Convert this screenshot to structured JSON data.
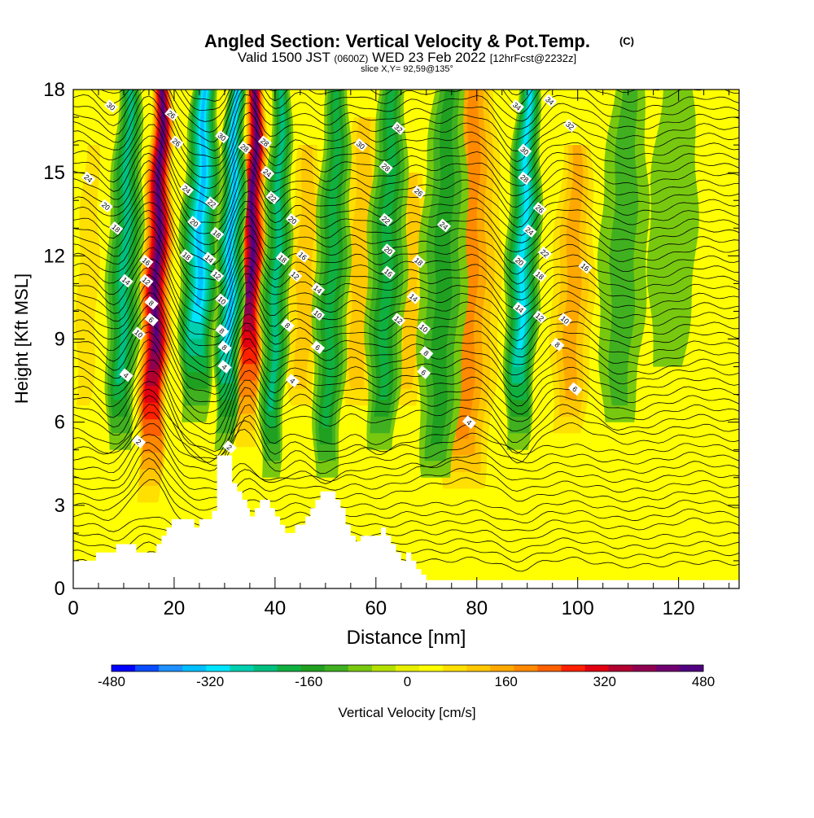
{
  "chart_data": {
    "type": "heatmap",
    "title": "Angled Section: Vertical Velocity & Pot.Temp.",
    "title_mark": "(C)",
    "subtitle": {
      "valid": "Valid 1500 JST",
      "zulu": "(0600Z)",
      "date": "WED 23 Feb 2022",
      "forecast": "[12hrFcst@2232z]"
    },
    "slice_label": "slice X,Y= 92,59@135°",
    "xlabel": "Distance [nm]",
    "ylabel": "Height [Kft MSL]",
    "xlim": [
      0,
      132
    ],
    "ylim": [
      0,
      18
    ],
    "x_ticks": [
      0,
      20,
      40,
      60,
      80,
      100,
      120
    ],
    "x_tick_labels": [
      "0",
      "20",
      "40",
      "60",
      "80",
      "100",
      "120"
    ],
    "y_ticks": [
      0,
      3,
      6,
      9,
      12,
      15,
      18
    ],
    "y_tick_labels": [
      "0",
      "3",
      "6",
      "9",
      "12",
      "15",
      "18"
    ],
    "colorbar": {
      "label": "Vertical Velocity [cm/s]",
      "min": -480,
      "max": 480,
      "step": 40,
      "tick_values": [
        -480,
        -320,
        -160,
        0,
        160,
        320,
        480
      ],
      "tick_labels": [
        "-480",
        "-320",
        "-160",
        "0",
        "160",
        "320",
        "480"
      ],
      "colors": [
        "#0000ff",
        "#0a4cff",
        "#1e90ff",
        "#00bfff",
        "#00e5ff",
        "#00d0b0",
        "#00c080",
        "#10b040",
        "#20a020",
        "#40b020",
        "#78c810",
        "#b4e000",
        "#e8f000",
        "#ffff00",
        "#ffe000",
        "#ffc800",
        "#ffa800",
        "#ff8a00",
        "#ff6000",
        "#ff2000",
        "#e00010",
        "#b00030",
        "#900050",
        "#700070",
        "#500080"
      ]
    },
    "vertical_velocity_bands": [
      {
        "x": 15,
        "w": 2.2,
        "v": 480,
        "top": 18,
        "bottom": 2.5
      },
      {
        "x": 34,
        "w": 2.0,
        "v": 480,
        "top": 18,
        "bottom": 4.5
      },
      {
        "x": 77,
        "w": 5.0,
        "v": 200,
        "top": 18,
        "bottom": 3
      },
      {
        "x": 98,
        "w": 3.5,
        "v": 170,
        "top": 16,
        "bottom": 5
      },
      {
        "x": 56,
        "w": 3.5,
        "v": 150,
        "top": 17,
        "bottom": 6
      },
      {
        "x": 45,
        "w": 3.0,
        "v": 130,
        "top": 16,
        "bottom": 6
      },
      {
        "x": 66,
        "w": 3.0,
        "v": 120,
        "top": 15,
        "bottom": 6
      },
      {
        "x": 123,
        "w": 3.0,
        "v": 70,
        "top": 14,
        "bottom": 2
      },
      {
        "x": 2,
        "w": 2.5,
        "v": 80,
        "top": 16,
        "bottom": 6
      },
      {
        "x": 24,
        "w": 2.5,
        "v": -320,
        "top": 18,
        "bottom": 6
      },
      {
        "x": 30,
        "w": 1.8,
        "v": -350,
        "top": 18,
        "bottom": 5
      },
      {
        "x": 88,
        "w": 2.2,
        "v": -300,
        "top": 18,
        "bottom": 5
      },
      {
        "x": 9,
        "w": 2.2,
        "v": -200,
        "top": 18,
        "bottom": 5
      },
      {
        "x": 39,
        "w": 1.8,
        "v": -200,
        "top": 18,
        "bottom": 4
      },
      {
        "x": 50,
        "w": 2.2,
        "v": -170,
        "top": 18,
        "bottom": 4
      },
      {
        "x": 61,
        "w": 2.5,
        "v": -180,
        "top": 18,
        "bottom": 5
      },
      {
        "x": 72,
        "w": 3.0,
        "v": -120,
        "top": 18,
        "bottom": 4
      },
      {
        "x": 108,
        "w": 3.0,
        "v": -90,
        "top": 18,
        "bottom": 6
      },
      {
        "x": 118,
        "w": 3.0,
        "v": -60,
        "top": 18,
        "bottom": 8
      }
    ],
    "terrain": [
      [
        0,
        1
      ],
      [
        4.5,
        1
      ],
      [
        4.5,
        1.3
      ],
      [
        8.5,
        1.3
      ],
      [
        8.5,
        1.6
      ],
      [
        12.5,
        1.6
      ],
      [
        12.5,
        1.3
      ],
      [
        16.5,
        1.3
      ],
      [
        16.5,
        1.6
      ],
      [
        17.5,
        1.6
      ],
      [
        17.5,
        1.9
      ],
      [
        18.5,
        1.9
      ],
      [
        18.5,
        2.2
      ],
      [
        19.5,
        2.2
      ],
      [
        19.5,
        2.5
      ],
      [
        24,
        2.5
      ],
      [
        24,
        2.2
      ],
      [
        25,
        2.2
      ],
      [
        25,
        2.5
      ],
      [
        27.5,
        2.5
      ],
      [
        27.5,
        2.8
      ],
      [
        28.5,
        2.8
      ],
      [
        28.5,
        4.8
      ],
      [
        31.5,
        4.8
      ],
      [
        31.5,
        3.8
      ],
      [
        32.5,
        3.8
      ],
      [
        32.5,
        3.5
      ],
      [
        33.5,
        3.5
      ],
      [
        33.5,
        3.2
      ],
      [
        34.5,
        3.2
      ],
      [
        34.5,
        2.9
      ],
      [
        35,
        2.9
      ],
      [
        35,
        2.6
      ],
      [
        36,
        2.6
      ],
      [
        36,
        2.9
      ],
      [
        37,
        2.9
      ],
      [
        37,
        3.2
      ],
      [
        39,
        3.2
      ],
      [
        39,
        2.9
      ],
      [
        40,
        2.9
      ],
      [
        40,
        2.6
      ],
      [
        41,
        2.6
      ],
      [
        41,
        2.3
      ],
      [
        42,
        2.3
      ],
      [
        42,
        2.0
      ],
      [
        44,
        2.0
      ],
      [
        44,
        2.3
      ],
      [
        46,
        2.3
      ],
      [
        46,
        2.6
      ],
      [
        47,
        2.6
      ],
      [
        47,
        2.9
      ],
      [
        48,
        2.9
      ],
      [
        48,
        3.2
      ],
      [
        49,
        3.2
      ],
      [
        49,
        3.5
      ],
      [
        52,
        3.5
      ],
      [
        52,
        3.2
      ],
      [
        53,
        3.2
      ],
      [
        53,
        2.9
      ],
      [
        54,
        2.9
      ],
      [
        54,
        2.3
      ],
      [
        55,
        2.3
      ],
      [
        55,
        1.9
      ],
      [
        56,
        1.9
      ],
      [
        56,
        1.7
      ],
      [
        57,
        1.7
      ],
      [
        57,
        1.9
      ],
      [
        61,
        1.9
      ],
      [
        61,
        2.2
      ],
      [
        62,
        2.2
      ],
      [
        62,
        1.9
      ],
      [
        63,
        1.9
      ],
      [
        63,
        1.6
      ],
      [
        64,
        1.6
      ],
      [
        64,
        1.3
      ],
      [
        65,
        1.3
      ],
      [
        65,
        1.0
      ],
      [
        66,
        1.0
      ],
      [
        66,
        1.3
      ],
      [
        67,
        1.3
      ],
      [
        67,
        1.0
      ],
      [
        68,
        1.0
      ],
      [
        68,
        0.7
      ],
      [
        69,
        0.7
      ],
      [
        69,
        0.5
      ],
      [
        70,
        0.5
      ],
      [
        70,
        0.3
      ],
      [
        132,
        0.3
      ],
      [
        132,
        0
      ]
    ],
    "contour_labels": [
      {
        "x": 7.5,
        "y": 17.4,
        "t": "30"
      },
      {
        "x": 3,
        "y": 14.8,
        "t": "24"
      },
      {
        "x": 6.5,
        "y": 13.8,
        "t": "20"
      },
      {
        "x": 8.5,
        "y": 13.0,
        "t": "18"
      },
      {
        "x": 10.5,
        "y": 11.1,
        "t": "14"
      },
      {
        "x": 13,
        "y": 9.2,
        "t": "10"
      },
      {
        "x": 10.5,
        "y": 7.7,
        "t": "4"
      },
      {
        "x": 13,
        "y": 5.3,
        "t": "2"
      },
      {
        "x": 14.5,
        "y": 11.8,
        "t": "16"
      },
      {
        "x": 14.5,
        "y": 11.1,
        "t": "12"
      },
      {
        "x": 15.5,
        "y": 10.3,
        "t": "8"
      },
      {
        "x": 15.5,
        "y": 9.7,
        "t": "6"
      },
      {
        "x": 19.5,
        "y": 17.1,
        "t": "26"
      },
      {
        "x": 20.5,
        "y": 16.1,
        "t": "26"
      },
      {
        "x": 22.5,
        "y": 14.4,
        "t": "24"
      },
      {
        "x": 22.5,
        "y": 12.0,
        "t": "18"
      },
      {
        "x": 24,
        "y": 13.2,
        "t": "20"
      },
      {
        "x": 27.5,
        "y": 13.9,
        "t": "22"
      },
      {
        "x": 27,
        "y": 11.9,
        "t": "14"
      },
      {
        "x": 28.5,
        "y": 12.8,
        "t": "18"
      },
      {
        "x": 28.5,
        "y": 11.3,
        "t": "12"
      },
      {
        "x": 29.5,
        "y": 10.4,
        "t": "10"
      },
      {
        "x": 29.5,
        "y": 9.3,
        "t": "8"
      },
      {
        "x": 30.0,
        "y": 8.7,
        "t": "8"
      },
      {
        "x": 30.0,
        "y": 8.0,
        "t": "4"
      },
      {
        "x": 31.0,
        "y": 5.1,
        "t": "2"
      },
      {
        "x": 29.5,
        "y": 16.3,
        "t": "30"
      },
      {
        "x": 34.0,
        "y": 15.9,
        "t": "28"
      },
      {
        "x": 38.0,
        "y": 16.1,
        "t": "28"
      },
      {
        "x": 38.5,
        "y": 15.0,
        "t": "24"
      },
      {
        "x": 39.5,
        "y": 14.1,
        "t": "22"
      },
      {
        "x": 43.5,
        "y": 13.3,
        "t": "20"
      },
      {
        "x": 41.5,
        "y": 11.9,
        "t": "18"
      },
      {
        "x": 45.5,
        "y": 12.0,
        "t": "16"
      },
      {
        "x": 44.0,
        "y": 11.3,
        "t": "12"
      },
      {
        "x": 48.5,
        "y": 10.8,
        "t": "14"
      },
      {
        "x": 48.5,
        "y": 9.9,
        "t": "10"
      },
      {
        "x": 42.5,
        "y": 9.5,
        "t": "8"
      },
      {
        "x": 48.5,
        "y": 8.7,
        "t": "6"
      },
      {
        "x": 43.5,
        "y": 7.5,
        "t": "4"
      },
      {
        "x": 57.0,
        "y": 16.0,
        "t": "30"
      },
      {
        "x": 64.5,
        "y": 16.6,
        "t": "32"
      },
      {
        "x": 62.0,
        "y": 15.2,
        "t": "28"
      },
      {
        "x": 68.5,
        "y": 14.3,
        "t": "26"
      },
      {
        "x": 62.0,
        "y": 13.3,
        "t": "22"
      },
      {
        "x": 62.5,
        "y": 12.2,
        "t": "20"
      },
      {
        "x": 62.5,
        "y": 11.4,
        "t": "16"
      },
      {
        "x": 68.5,
        "y": 11.8,
        "t": "18"
      },
      {
        "x": 67.5,
        "y": 10.5,
        "t": "14"
      },
      {
        "x": 64.5,
        "y": 9.7,
        "t": "12"
      },
      {
        "x": 69.5,
        "y": 9.4,
        "t": "10"
      },
      {
        "x": 70.0,
        "y": 8.5,
        "t": "8"
      },
      {
        "x": 69.5,
        "y": 7.8,
        "t": "6"
      },
      {
        "x": 73.5,
        "y": 13.1,
        "t": "24"
      },
      {
        "x": 78.5,
        "y": 6.0,
        "t": "4"
      },
      {
        "x": 88.0,
        "y": 17.4,
        "t": "34"
      },
      {
        "x": 94.5,
        "y": 17.6,
        "t": "34"
      },
      {
        "x": 98.5,
        "y": 16.7,
        "t": "32"
      },
      {
        "x": 89.5,
        "y": 15.8,
        "t": "30"
      },
      {
        "x": 89.5,
        "y": 14.8,
        "t": "28"
      },
      {
        "x": 92.5,
        "y": 13.7,
        "t": "26"
      },
      {
        "x": 90.5,
        "y": 12.9,
        "t": "24"
      },
      {
        "x": 93.5,
        "y": 12.1,
        "t": "22"
      },
      {
        "x": 88.5,
        "y": 11.8,
        "t": "20"
      },
      {
        "x": 92.5,
        "y": 11.3,
        "t": "18"
      },
      {
        "x": 101.5,
        "y": 11.6,
        "t": "16"
      },
      {
        "x": 88.5,
        "y": 10.1,
        "t": "14"
      },
      {
        "x": 92.5,
        "y": 9.8,
        "t": "12"
      },
      {
        "x": 97.5,
        "y": 9.7,
        "t": "10"
      },
      {
        "x": 96.0,
        "y": 8.8,
        "t": "8"
      },
      {
        "x": 99.5,
        "y": 7.2,
        "t": "6"
      }
    ]
  }
}
